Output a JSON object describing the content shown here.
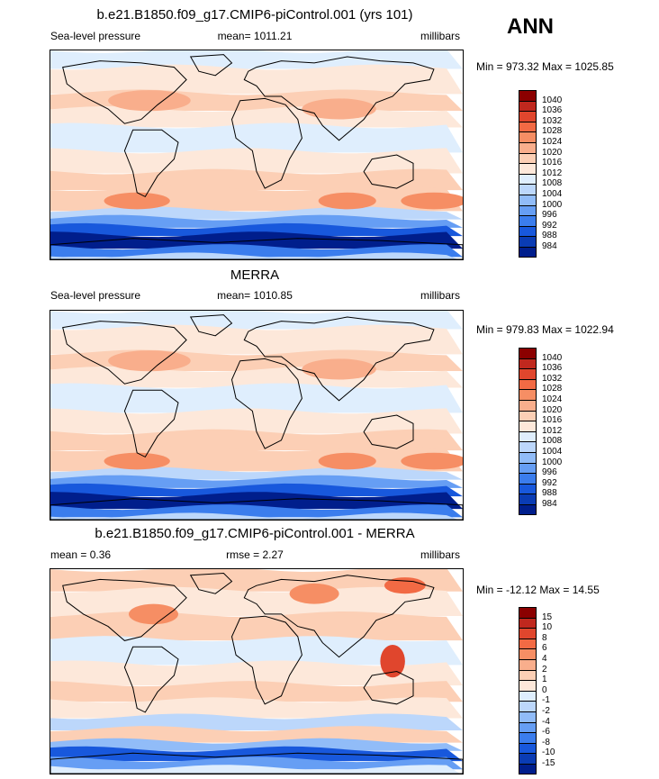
{
  "season": "ANN",
  "panels": [
    {
      "title": "b.e21.B1850.f09_g17.CMIP6-piControl.001 (yrs 101)",
      "left": "Sea-level pressure",
      "center": "mean= 1011.21",
      "right": "millibars",
      "minmax": "Min = 973.32 Max = 1025.85",
      "kind": "abs",
      "colorbar": {
        "labels": [
          "1040",
          "1036",
          "1032",
          "1028",
          "1024",
          "1020",
          "1016",
          "1012",
          "1008",
          "1004",
          "1000",
          "996",
          "992",
          "988",
          "984"
        ],
        "colors": [
          "#8b0000",
          "#c0281e",
          "#e0462d",
          "#f26a44",
          "#f68e64",
          "#f9ae8c",
          "#fccfb5",
          "#fde8da",
          "#dfeefd",
          "#bcd7fb",
          "#91bcf8",
          "#669ef4",
          "#3b7ded",
          "#1858dc",
          "#0a3cb4",
          "#001e8c"
        ]
      }
    },
    {
      "title": "MERRA",
      "left": "Sea-level pressure",
      "center": "mean= 1010.85",
      "right": "millibars",
      "minmax": "Min = 979.83 Max = 1022.94",
      "kind": "abs",
      "colorbar": {
        "labels": [
          "1040",
          "1036",
          "1032",
          "1028",
          "1024",
          "1020",
          "1016",
          "1012",
          "1008",
          "1004",
          "1000",
          "996",
          "992",
          "988",
          "984"
        ],
        "colors": [
          "#8b0000",
          "#c0281e",
          "#e0462d",
          "#f26a44",
          "#f68e64",
          "#f9ae8c",
          "#fccfb5",
          "#fde8da",
          "#dfeefd",
          "#bcd7fb",
          "#91bcf8",
          "#669ef4",
          "#3b7ded",
          "#1858dc",
          "#0a3cb4",
          "#001e8c"
        ]
      }
    },
    {
      "title": "b.e21.B1850.f09_g17.CMIP6-piControl.001 - MERRA",
      "left": "mean =   0.36",
      "center": "rmse =   2.27",
      "right": "millibars",
      "minmax": "Min = -12.12 Max =  14.55",
      "kind": "diff",
      "colorbar": {
        "labels": [
          "15",
          "10",
          "8",
          "6",
          "4",
          "2",
          "1",
          "0",
          "-1",
          "-2",
          "-4",
          "-6",
          "-8",
          "-10",
          "-15"
        ],
        "colors": [
          "#8b0000",
          "#c0281e",
          "#e0462d",
          "#f26a44",
          "#f68e64",
          "#f9ae8c",
          "#fccfb5",
          "#fde8da",
          "#dfeefd",
          "#bcd7fb",
          "#91bcf8",
          "#669ef4",
          "#3b7ded",
          "#1858dc",
          "#0a3cb4",
          "#001e8c"
        ]
      }
    }
  ]
}
